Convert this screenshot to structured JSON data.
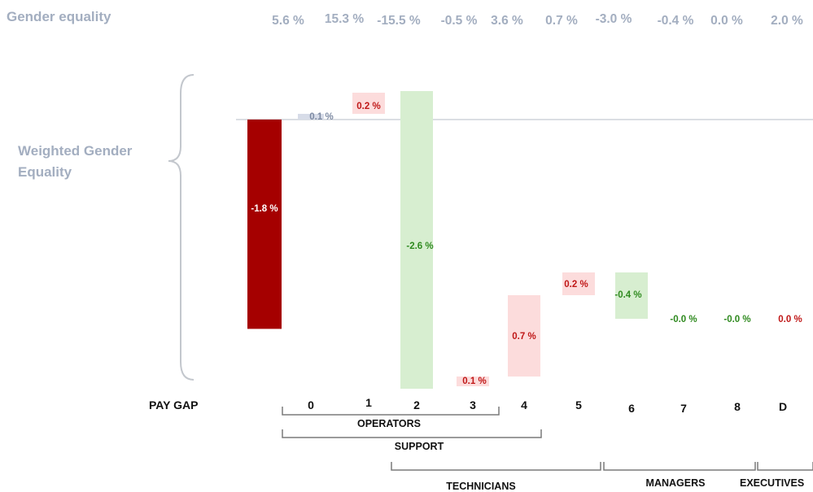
{
  "chart_data": {
    "type": "bar",
    "subtype": "waterfall",
    "title": "Gender equality",
    "left_label_lines": [
      "Weighted Gender",
      "Equality"
    ],
    "xlabel": "",
    "ylabel": "",
    "gender_equality_values": [
      "5.6 %",
      "15.3 %",
      "-15.5 %",
      "-0.5 %",
      "3.6 %",
      "0.7 %",
      "-3.0 %",
      "-0.4 %",
      "0.0 %",
      "2.0 %"
    ],
    "start_label": "PAY GAP",
    "categories": [
      "0",
      "1",
      "2",
      "3",
      "4",
      "5",
      "6",
      "7",
      "8",
      "D"
    ],
    "start_value": -1.8,
    "start_value_label": "-1.8 %",
    "values": [
      0.1,
      0.2,
      -2.6,
      0.1,
      0.7,
      0.2,
      -0.4,
      -0.0,
      -0.0,
      0.0
    ],
    "value_labels": [
      "0.1 %",
      "0.2 %",
      "-2.6 %",
      "0.1 %",
      "0.7 %",
      "0.2 %",
      "-0.4 %",
      "-0.0 %",
      "-0.0 %",
      "0.0 %"
    ],
    "groups": [
      {
        "name": "OPERATORS",
        "from": "0",
        "to": "3"
      },
      {
        "name": "SUPPORT",
        "from": "0",
        "to": "4"
      },
      {
        "name": "TECHNICIANS",
        "from": "3",
        "to": "6"
      },
      {
        "name": "MANAGERS",
        "from": "6",
        "to": "8"
      },
      {
        "name": "EXECUTIVES",
        "from": "8",
        "to": "D"
      }
    ],
    "colors": {
      "start": "#a50000",
      "positive_fill": "#fcdcdc",
      "positive_text": "#c01818",
      "negative_fill": "#d7eed0",
      "negative_text": "#2f8a1f",
      "tiny_positive_fill": "#d7dce8",
      "tiny_positive_text": "#7d8aa3",
      "title_gray": "#a3aec0",
      "axis_gray": "#cfd3da"
    },
    "grid": false,
    "legend": "none"
  }
}
